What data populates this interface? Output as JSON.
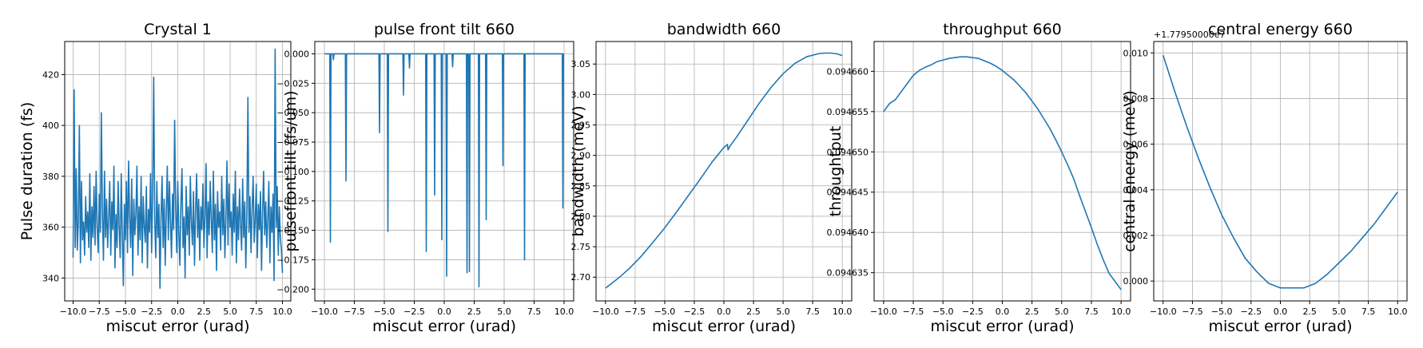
{
  "chart_data": [
    {
      "type": "line",
      "title": "Crystal 1",
      "xlabel": "miscut error (urad)",
      "ylabel": "Pulse duration (fs)",
      "xlim": [
        -10.8,
        10.8
      ],
      "ylim": [
        331,
        433
      ],
      "xticks": [
        -10,
        -7.5,
        -5,
        -2.5,
        0,
        2.5,
        5,
        7.5,
        10
      ],
      "xtick_labels": [
        "−10.0",
        "−7.5",
        "−5.0",
        "−2.5",
        "0.0",
        "2.5",
        "5.0",
        "7.5",
        "10.0"
      ],
      "yticks": [
        340,
        360,
        380,
        400,
        420
      ],
      "ytick_labels": [
        "340",
        "360",
        "380",
        "400",
        "420"
      ],
      "grid": true,
      "color": "#1f77b4",
      "series": [
        {
          "x": [
            -10.0,
            -9.9,
            -9.8,
            -9.7,
            -9.6,
            -9.5,
            -9.4,
            -9.3,
            -9.2,
            -9.1,
            -9.0,
            -8.9,
            -8.8,
            -8.7,
            -8.6,
            -8.5,
            -8.4,
            -8.3,
            -8.2,
            -8.1,
            -8.0,
            -7.9,
            -7.8,
            -7.7,
            -7.6,
            -7.5,
            -7.4,
            -7.3,
            -7.2,
            -7.1,
            -7.0,
            -6.9,
            -6.8,
            -6.7,
            -6.6,
            -6.5,
            -6.4,
            -6.3,
            -6.2,
            -6.1,
            -6.0,
            -5.9,
            -5.8,
            -5.7,
            -5.6,
            -5.5,
            -5.4,
            -5.3,
            -5.2,
            -5.1,
            -5.0,
            -4.9,
            -4.8,
            -4.7,
            -4.6,
            -4.5,
            -4.4,
            -4.3,
            -4.2,
            -4.1,
            -4.0,
            -3.9,
            -3.8,
            -3.7,
            -3.6,
            -3.5,
            -3.4,
            -3.3,
            -3.2,
            -3.1,
            -3.0,
            -2.9,
            -2.8,
            -2.7,
            -2.6,
            -2.5,
            -2.4,
            -2.3,
            -2.2,
            -2.1,
            -2.0,
            -1.9,
            -1.8,
            -1.7,
            -1.6,
            -1.5,
            -1.4,
            -1.3,
            -1.2,
            -1.1,
            -1.0,
            -0.9,
            -0.8,
            -0.7,
            -0.6,
            -0.5,
            -0.4,
            -0.3,
            -0.2,
            -0.1,
            0.0,
            0.1,
            0.2,
            0.3,
            0.4,
            0.5,
            0.6,
            0.7,
            0.8,
            0.9,
            1.0,
            1.1,
            1.2,
            1.3,
            1.4,
            1.5,
            1.6,
            1.7,
            1.8,
            1.9,
            2.0,
            2.1,
            2.2,
            2.3,
            2.4,
            2.5,
            2.6,
            2.7,
            2.8,
            2.9,
            3.0,
            3.1,
            3.2,
            3.3,
            3.4,
            3.5,
            3.6,
            3.7,
            3.8,
            3.9,
            4.0,
            4.1,
            4.2,
            4.3,
            4.4,
            4.5,
            4.6,
            4.7,
            4.8,
            4.9,
            5.0,
            5.1,
            5.2,
            5.3,
            5.4,
            5.5,
            5.6,
            5.7,
            5.8,
            5.9,
            6.0,
            6.1,
            6.2,
            6.3,
            6.4,
            6.5,
            6.6,
            6.7,
            6.8,
            6.9,
            7.0,
            7.1,
            7.2,
            7.3,
            7.4,
            7.5,
            7.6,
            7.7,
            7.8,
            7.9,
            8.0,
            8.1,
            8.2,
            8.3,
            8.4,
            8.5,
            8.6,
            8.7,
            8.8,
            8.9,
            9.0,
            9.1,
            9.2,
            9.3,
            9.4,
            9.5,
            9.6,
            9.7,
            9.8,
            9.9,
            10.0
          ],
          "y": [
            348,
            414,
            352,
            383,
            351,
            362,
            400,
            346,
            378,
            355,
            362,
            349,
            372,
            358,
            366,
            352,
            381,
            347,
            368,
            356,
            376,
            353,
            382,
            360,
            350,
            373,
            358,
            405,
            365,
            347,
            382,
            356,
            371,
            352,
            364,
            378,
            349,
            370,
            359,
            384,
            344,
            365,
            352,
            378,
            360,
            348,
            381,
            357,
            337,
            369,
            355,
            378,
            350,
            386,
            364,
            352,
            379,
            341,
            371,
            357,
            365,
            384,
            349,
            368,
            355,
            380,
            346,
            372,
            360,
            354,
            376,
            344,
            367,
            358,
            381,
            350,
            372,
            419,
            362,
            348,
            378,
            356,
            369,
            336,
            364,
            380,
            352,
            371,
            345,
            366,
            384,
            355,
            378,
            362,
            348,
            373,
            359,
            402,
            367,
            350,
            378,
            358,
            345,
            369,
            383,
            352,
            364,
            340,
            376,
            357,
            368,
            349,
            380,
            362,
            353,
            374,
            345,
            366,
            381,
            356,
            371,
            347,
            368,
            359,
            377,
            352,
            364,
            385,
            348,
            370,
            357,
            378,
            363,
            350,
            382,
            355,
            369,
            343,
            374,
            360,
            366,
            351,
            380,
            357,
            371,
            348,
            364,
            386,
            353,
            377,
            360,
            366,
            349,
            373,
            358,
            382,
            346,
            368,
            355,
            375,
            361,
            351,
            379,
            356,
            370,
            344,
            365,
            411,
            358,
            372,
            350,
            367,
            380,
            354,
            363,
            377,
            348,
            369,
            359,
            374,
            343,
            366,
            382,
            357,
            370,
            352,
            363,
            378,
            346,
            368,
            358,
            373,
            339,
            430,
            360,
            376,
            349,
            368,
            356,
            351,
            342
          ]
        }
      ]
    },
    {
      "type": "line",
      "title": "pulse front tilt 660",
      "xlabel": "miscut error (urad)",
      "ylabel": "pulsefront tilt (fs/um)",
      "xlim": [
        -10.8,
        10.8
      ],
      "ylim": [
        -0.21,
        0.0105
      ],
      "xticks": [
        -10,
        -7.5,
        -5,
        -2.5,
        0,
        2.5,
        5,
        7.5,
        10
      ],
      "xtick_labels": [
        "−10.0",
        "−7.5",
        "−5.0",
        "−2.5",
        "0.0",
        "2.5",
        "5.0",
        "7.5",
        "10.0"
      ],
      "yticks": [
        0.0,
        -0.025,
        -0.05,
        -0.075,
        -0.1,
        -0.125,
        -0.15,
        -0.175,
        -0.2
      ],
      "ytick_labels": [
        "0.000",
        "−0.025",
        "−0.050",
        "−0.075",
        "−0.100",
        "−0.125",
        "−0.150",
        "−0.175",
        "−0.200"
      ],
      "grid": true,
      "color": "#1f77b4",
      "series": [
        {
          "x": [
            -10.0,
            -9.55,
            -9.5,
            -9.45,
            -9.3,
            -9.25,
            -9.2,
            -8.25,
            -8.2,
            -8.15,
            -5.45,
            -5.4,
            -5.35,
            -4.75,
            -4.7,
            -4.65,
            -3.45,
            -3.4,
            -3.35,
            -2.95,
            -2.9,
            -2.85,
            -1.55,
            -1.5,
            -1.45,
            -0.85,
            -0.8,
            -0.75,
            -0.25,
            -0.2,
            -0.15,
            0.15,
            0.2,
            0.25,
            0.65,
            0.7,
            0.75,
            1.85,
            1.9,
            1.95,
            2.05,
            2.1,
            2.15,
            2.85,
            2.9,
            2.95,
            3.45,
            3.5,
            3.55,
            4.85,
            4.9,
            4.95,
            6.65,
            6.7,
            6.75,
            9.85,
            9.9,
            9.95,
            10.0
          ],
          "y": [
            0.0,
            0.0,
            -0.16,
            0.0,
            0.0,
            -0.005,
            0.0,
            0.0,
            -0.108,
            0.0,
            0.0,
            -0.067,
            0.0,
            0.0,
            -0.151,
            0.0,
            0.0,
            -0.035,
            0.0,
            0.0,
            -0.012,
            0.0,
            0.0,
            -0.168,
            0.0,
            0.0,
            -0.12,
            0.0,
            0.0,
            -0.158,
            0.0,
            0.0,
            -0.189,
            0.0,
            0.0,
            -0.011,
            0.0,
            0.0,
            -0.186,
            0.0,
            0.0,
            -0.185,
            0.0,
            0.0,
            -0.198,
            0.0,
            0.0,
            -0.141,
            0.0,
            0.0,
            -0.095,
            0.0,
            0.0,
            -0.175,
            0.0,
            0.0,
            -0.131,
            0.0,
            0.0
          ]
        }
      ]
    },
    {
      "type": "line",
      "title": "bandwidth 660",
      "xlabel": "miscut error (urad)",
      "ylabel": "bandwidth (meV)",
      "xlim": [
        -10.8,
        10.8
      ],
      "ylim": [
        2.661,
        3.087
      ],
      "xticks": [
        -10,
        -7.5,
        -5,
        -2.5,
        0,
        2.5,
        5,
        7.5,
        10
      ],
      "xtick_labels": [
        "−10.0",
        "−7.5",
        "−5.0",
        "−2.5",
        "0.0",
        "2.5",
        "5.0",
        "7.5",
        "10.0"
      ],
      "yticks": [
        2.7,
        2.75,
        2.8,
        2.85,
        2.9,
        2.95,
        3.0,
        3.05
      ],
      "ytick_labels": [
        "2.70",
        "2.75",
        "2.80",
        "2.85",
        "2.90",
        "2.95",
        "3.00",
        "3.05"
      ],
      "grid": true,
      "color": "#1f77b4",
      "series": [
        {
          "x": [
            -10.0,
            -9.0,
            -8.0,
            -7.0,
            -6.0,
            -5.0,
            -4.0,
            -3.0,
            -2.0,
            -1.0,
            0.0,
            0.3,
            0.35,
            0.5,
            1.0,
            2.0,
            3.0,
            4.0,
            5.0,
            6.0,
            7.0,
            8.0,
            8.5,
            9.0,
            9.5,
            10.0
          ],
          "y": [
            2.682,
            2.697,
            2.714,
            2.734,
            2.757,
            2.781,
            2.807,
            2.834,
            2.861,
            2.889,
            2.913,
            2.918,
            2.909,
            2.915,
            2.928,
            2.957,
            2.986,
            3.012,
            3.034,
            3.051,
            3.062,
            3.067,
            3.068,
            3.068,
            3.067,
            3.064
          ]
        }
      ]
    },
    {
      "type": "line",
      "title": "throughput 660",
      "xlabel": "miscut error (urad)",
      "ylabel": "throughtput",
      "xlim": [
        -10.8,
        10.8
      ],
      "ylim": [
        0.0946315,
        0.0946637
      ],
      "xticks": [
        -10,
        -7.5,
        -5,
        -2.5,
        0,
        2.5,
        5,
        7.5,
        10
      ],
      "xtick_labels": [
        "−10.0",
        "−7.5",
        "−5.0",
        "−2.5",
        "0.0",
        "2.5",
        "5.0",
        "7.5",
        "10.0"
      ],
      "yticks": [
        0.094635,
        0.09464,
        0.094645,
        0.09465,
        0.094655,
        0.09466
      ],
      "ytick_labels": [
        "0.094635",
        "0.094640",
        "0.094645",
        "0.094650",
        "0.094655",
        "0.094660"
      ],
      "grid": true,
      "color": "#1f77b4",
      "series": [
        {
          "x": [
            -10.0,
            -9.5,
            -9.0,
            -8.5,
            -8.0,
            -7.5,
            -7.0,
            -6.5,
            -6.0,
            -5.5,
            -5.0,
            -4.5,
            -4.0,
            -3.5,
            -3.0,
            -2.5,
            -2.0,
            -1.5,
            -1.0,
            -0.5,
            0.0,
            0.5,
            1.0,
            1.5,
            2.0,
            2.5,
            3.0,
            3.5,
            4.0,
            4.5,
            5.0,
            5.5,
            6.0,
            6.5,
            7.0,
            7.5,
            8.0,
            8.5,
            9.0,
            9.5,
            10.0
          ],
          "y": [
            0.094655,
            0.094656,
            0.0946565,
            0.0946575,
            0.0946585,
            0.0946595,
            0.0946601,
            0.0946605,
            0.0946608,
            0.0946612,
            0.0946614,
            0.0946616,
            0.0946617,
            0.0946618,
            0.0946618,
            0.0946617,
            0.0946616,
            0.0946613,
            0.094661,
            0.0946606,
            0.0946601,
            0.0946595,
            0.0946589,
            0.0946581,
            0.0946573,
            0.0946563,
            0.0946553,
            0.0946541,
            0.0946529,
            0.0946515,
            0.09465,
            0.0946484,
            0.0946467,
            0.0946446,
            0.0946426,
            0.0946406,
            0.0946385,
            0.0946366,
            0.0946349,
            0.0946339,
            0.0946329
          ]
        }
      ]
    },
    {
      "type": "line",
      "title": "central energy 660",
      "xlabel": "miscut error (urad)",
      "ylabel": "central energy (meV)",
      "offset_label": "+1.77950000e7",
      "xlim": [
        -10.8,
        10.8
      ],
      "ylim": [
        -0.00087,
        0.0105
      ],
      "xticks": [
        -10,
        -7.5,
        -5,
        -2.5,
        0,
        2.5,
        5,
        7.5,
        10
      ],
      "xtick_labels": [
        "−10.0",
        "−7.5",
        "−5.0",
        "−2.5",
        "0.0",
        "2.5",
        "5.0",
        "7.5",
        "10.0"
      ],
      "yticks": [
        0.0,
        0.002,
        0.004,
        0.006,
        0.008,
        0.01
      ],
      "ytick_labels": [
        "0.000",
        "0.002",
        "0.004",
        "0.006",
        "0.008",
        "0.010"
      ],
      "grid": true,
      "color": "#1f77b4",
      "series": [
        {
          "x": [
            -10.0,
            -9.0,
            -8.0,
            -7.0,
            -6.0,
            -5.0,
            -4.0,
            -3.0,
            -2.0,
            -1.0,
            0.0,
            1.0,
            1.5,
            2.0,
            3.0,
            4.0,
            5.0,
            6.0,
            7.0,
            8.0,
            9.0,
            10.0
          ],
          "y": [
            0.0099,
            0.0083,
            0.0068,
            0.0054,
            0.0041,
            0.0029,
            0.0019,
            0.001,
            0.0004,
            -0.0001,
            -0.0003,
            -0.0003,
            -0.0003,
            -0.0003,
            -0.0001,
            0.0003,
            0.0008,
            0.0013,
            0.0019,
            0.0025,
            0.0032,
            0.0039
          ]
        }
      ]
    }
  ]
}
